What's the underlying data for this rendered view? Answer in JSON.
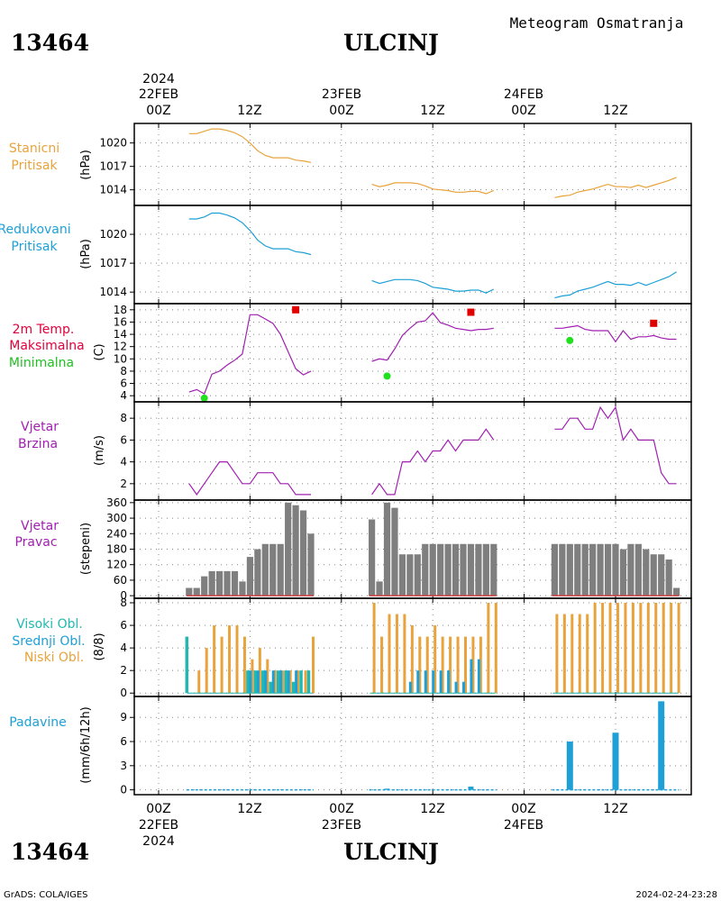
{
  "header": {
    "station_id": "13464",
    "station_name": "ULCINJ",
    "product": "Meteogram Osmatranja"
  },
  "footer": {
    "station_id": "13464",
    "station_name": "ULCINJ",
    "credit": "GrADS: COLA/IGES",
    "timestamp": "2024-02-24-23:28"
  },
  "time_axis": {
    "year": "2024",
    "ticks": [
      {
        "hour": 0,
        "label": "00Z",
        "date": "22FEB"
      },
      {
        "hour": 12,
        "label": "12Z"
      },
      {
        "hour": 24,
        "label": "00Z",
        "date": "23FEB"
      },
      {
        "hour": 36,
        "label": "12Z"
      },
      {
        "hour": 48,
        "label": "00Z",
        "date": "24FEB"
      },
      {
        "hour": 60,
        "label": "12Z"
      }
    ]
  },
  "panels": [
    {
      "label": [
        "Stanicni",
        "Pritisak"
      ],
      "units": "(hPa)",
      "label_color": "#e8a33c"
    },
    {
      "label": [
        "Redukovani",
        "Pritisak"
      ],
      "units": "(hPa)",
      "label_color": "#1ea0d6"
    },
    {
      "label": [
        "2m Temp.",
        "Maksimalna",
        "Minimalna"
      ],
      "units": "(C)",
      "label_colors": [
        "#e0003c",
        "#e0003c",
        "#20c020"
      ]
    },
    {
      "label": [
        "Vjetar",
        "Brzina"
      ],
      "units": "(m/s)",
      "label_color": "#a020b0"
    },
    {
      "label": [
        "Vjetar",
        "Pravac"
      ],
      "units": "(stepeni)",
      "label_color": "#a020b0"
    },
    {
      "label": [
        "Visoki Obl.",
        "Srednji Obl.",
        "Niski Obl."
      ],
      "units": "(8/8)",
      "label_colors": [
        "#20b8b0",
        "#1ea0d6",
        "#e8a33c"
      ]
    },
    {
      "label": [
        "Padavine"
      ],
      "units": "(mm/6h/12h)",
      "label_color": "#1ea0d6"
    }
  ],
  "chart_data": [
    {
      "type": "line",
      "title": "Stanicni Pritisak",
      "ylabel": "(hPa)",
      "ylim": [
        1012,
        1022.5
      ],
      "yticks": [
        1014,
        1017,
        1020
      ],
      "color": "#e8a33c",
      "series": [
        {
          "x": [
            4,
            5,
            6,
            7,
            8,
            9,
            10,
            11,
            12,
            13,
            14,
            15,
            16,
            17,
            18,
            19,
            20
          ],
          "y": [
            1021.2,
            1021.2,
            1021.5,
            1021.8,
            1021.8,
            1021.6,
            1021.3,
            1020.8,
            1020.0,
            1019.0,
            1018.4,
            1018.1,
            1018.1,
            1018.1,
            1017.8,
            1017.7,
            1017.5
          ]
        },
        {
          "x": [
            28,
            29,
            30,
            31,
            32,
            33,
            34,
            35,
            36,
            37,
            38,
            39,
            40,
            41,
            42,
            43,
            44
          ],
          "y": [
            1014.7,
            1014.4,
            1014.6,
            1014.9,
            1014.9,
            1014.9,
            1014.8,
            1014.5,
            1014.1,
            1014.0,
            1013.9,
            1013.7,
            1013.7,
            1013.8,
            1013.8,
            1013.5,
            1013.9
          ]
        },
        {
          "x": [
            52,
            53,
            54,
            55,
            56,
            57,
            58,
            59,
            60,
            61,
            62,
            63,
            64,
            65,
            66,
            67,
            68
          ],
          "y": [
            1013.0,
            1013.2,
            1013.3,
            1013.7,
            1013.9,
            1014.1,
            1014.4,
            1014.7,
            1014.4,
            1014.4,
            1014.3,
            1014.6,
            1014.3,
            1014.6,
            1014.9,
            1015.2,
            1015.6
          ]
        }
      ]
    },
    {
      "type": "line",
      "title": "Redukovani Pritisak",
      "ylabel": "(hPa)",
      "ylim": [
        1012.8,
        1023
      ],
      "yticks": [
        1014,
        1017,
        1020
      ],
      "color": "#1ea0d6",
      "series": [
        {
          "x": [
            4,
            5,
            6,
            7,
            8,
            9,
            10,
            11,
            12,
            13,
            14,
            15,
            16,
            17,
            18,
            19,
            20
          ],
          "y": [
            1021.6,
            1021.6,
            1021.8,
            1022.2,
            1022.2,
            1022.0,
            1021.7,
            1021.2,
            1020.4,
            1019.4,
            1018.8,
            1018.5,
            1018.5,
            1018.5,
            1018.2,
            1018.1,
            1017.9
          ]
        },
        {
          "x": [
            28,
            29,
            30,
            31,
            32,
            33,
            34,
            35,
            36,
            37,
            38,
            39,
            40,
            41,
            42,
            43,
            44
          ],
          "y": [
            1015.2,
            1014.9,
            1015.1,
            1015.3,
            1015.3,
            1015.3,
            1015.2,
            1014.9,
            1014.5,
            1014.4,
            1014.3,
            1014.1,
            1014.1,
            1014.2,
            1014.2,
            1013.9,
            1014.3
          ]
        },
        {
          "x": [
            52,
            53,
            54,
            55,
            56,
            57,
            58,
            59,
            60,
            61,
            62,
            63,
            64,
            65,
            66,
            67,
            68
          ],
          "y": [
            1013.4,
            1013.6,
            1013.7,
            1014.1,
            1014.3,
            1014.5,
            1014.8,
            1015.1,
            1014.8,
            1014.8,
            1014.7,
            1015.0,
            1014.7,
            1015.0,
            1015.3,
            1015.6,
            1016.1
          ]
        }
      ]
    },
    {
      "type": "line",
      "title": "2m Temp.",
      "ylabel": "(C)",
      "ylim": [
        3,
        19
      ],
      "yticks": [
        4,
        6,
        8,
        10,
        12,
        14,
        16,
        18
      ],
      "color": "#a020b0",
      "series": [
        {
          "x": [
            4,
            5,
            6,
            7,
            8,
            9,
            10,
            11,
            12,
            13,
            14,
            15,
            16,
            17,
            18,
            19,
            20
          ],
          "y": [
            4.6,
            5.0,
            4.3,
            7.5,
            8.0,
            9.0,
            9.8,
            10.8,
            17.2,
            17.2,
            16.5,
            15.8,
            14.0,
            11.2,
            8.4,
            7.4,
            8.0
          ]
        },
        {
          "x": [
            28,
            29,
            30,
            31,
            32,
            33,
            34,
            35,
            36,
            37,
            38,
            39,
            40,
            41,
            42,
            43,
            44
          ],
          "y": [
            9.6,
            10.0,
            9.8,
            11.6,
            13.8,
            15.0,
            16.0,
            16.2,
            17.5,
            15.9,
            15.5,
            15.0,
            14.8,
            14.6,
            14.8,
            14.8,
            15.0
          ]
        },
        {
          "x": [
            52,
            53,
            54,
            55,
            56,
            57,
            58,
            59,
            60,
            61,
            62,
            63,
            64,
            65,
            66,
            67,
            68
          ],
          "y": [
            15.0,
            15.0,
            15.2,
            15.4,
            14.8,
            14.6,
            14.6,
            14.6,
            12.8,
            14.6,
            13.2,
            13.6,
            13.6,
            13.8,
            13.4,
            13.2,
            13.2
          ]
        }
      ],
      "max": {
        "color": "#e00000",
        "points": [
          {
            "x": 18,
            "y": 18.0
          },
          {
            "x": 41,
            "y": 17.6
          },
          {
            "x": 65,
            "y": 15.8
          }
        ]
      },
      "min": {
        "color": "#20e020",
        "points": [
          {
            "x": 6,
            "y": 3.6
          },
          {
            "x": 30,
            "y": 7.2
          },
          {
            "x": 54,
            "y": 13.0
          }
        ]
      }
    },
    {
      "type": "line",
      "title": "Vjetar Brzina",
      "ylabel": "(m/s)",
      "ylim": [
        0.5,
        9.5
      ],
      "yticks": [
        2,
        4,
        6,
        8
      ],
      "color": "#a020b0",
      "series": [
        {
          "x": [
            4,
            5,
            6,
            7,
            8,
            9,
            10,
            11,
            12,
            13,
            14,
            15,
            16,
            17,
            18,
            19,
            20
          ],
          "y": [
            2,
            1,
            2,
            3,
            4,
            4,
            3,
            2,
            2,
            3,
            3,
            3,
            2,
            2,
            1,
            1,
            1
          ]
        },
        {
          "x": [
            28,
            29,
            30,
            31,
            32,
            33,
            34,
            35,
            36,
            37,
            38,
            39,
            40,
            41,
            42,
            43,
            44
          ],
          "y": [
            1,
            2,
            1,
            1,
            4,
            4,
            5,
            4,
            5,
            5,
            6,
            5,
            6,
            6,
            6,
            7,
            6
          ]
        },
        {
          "x": [
            52,
            53,
            54,
            55,
            56,
            57,
            58,
            59,
            60,
            61,
            62,
            63,
            64,
            65,
            66,
            67,
            68
          ],
          "y": [
            7,
            7,
            8,
            8,
            7,
            7,
            9,
            8,
            9,
            6,
            7,
            6,
            6,
            6,
            3,
            2,
            2
          ]
        }
      ]
    },
    {
      "type": "bar",
      "title": "Vjetar Pravac",
      "ylabel": "(stepeni)",
      "ylim": [
        -10,
        370
      ],
      "yticks": [
        0,
        60,
        120,
        180,
        240,
        300,
        360
      ],
      "color": "#7f7f7f",
      "x": [
        4,
        5,
        6,
        7,
        8,
        9,
        10,
        11,
        12,
        13,
        14,
        15,
        16,
        17,
        18,
        19,
        20,
        28,
        29,
        30,
        31,
        32,
        33,
        34,
        35,
        36,
        37,
        38,
        39,
        40,
        41,
        42,
        43,
        44,
        52,
        53,
        54,
        55,
        56,
        57,
        58,
        59,
        60,
        61,
        62,
        63,
        64,
        65,
        66,
        67,
        68
      ],
      "values": [
        30,
        30,
        75,
        95,
        95,
        95,
        95,
        55,
        150,
        180,
        200,
        200,
        200,
        360,
        350,
        330,
        240,
        295,
        55,
        360,
        340,
        160,
        160,
        160,
        200,
        200,
        200,
        200,
        200,
        200,
        200,
        200,
        200,
        200,
        200,
        200,
        200,
        200,
        200,
        200,
        200,
        200,
        200,
        180,
        200,
        200,
        180,
        160,
        160,
        140,
        30
      ]
    },
    {
      "type": "bar",
      "title": "Oblacnost",
      "ylabel": "(8/8)",
      "ylim": [
        -0.3,
        8.4
      ],
      "yticks": [
        0,
        2,
        4,
        6,
        8
      ],
      "series": [
        {
          "name": "Visoki Obl.",
          "color": "#20b8b0",
          "x": [
            4,
            12,
            13,
            14,
            15,
            16,
            17,
            18,
            19,
            20
          ],
          "values": [
            5,
            2,
            2,
            2,
            1,
            2,
            2,
            1,
            2,
            2
          ]
        },
        {
          "name": "Srednji Obl.",
          "color": "#1ea0d6",
          "x": [
            12,
            13,
            14,
            15,
            16,
            17,
            18,
            33,
            34,
            35,
            36,
            37,
            38,
            39,
            40,
            41,
            42
          ],
          "values": [
            2,
            2,
            2,
            2,
            2,
            2,
            2,
            1,
            2,
            2,
            2,
            2,
            2,
            1,
            1,
            3,
            3
          ]
        },
        {
          "name": "Niski Obl.",
          "color": "#e8a33c",
          "x": [
            5,
            6,
            7,
            8,
            9,
            10,
            11,
            12,
            13,
            14,
            15,
            16,
            17,
            18,
            19,
            20,
            28,
            29,
            30,
            31,
            32,
            33,
            34,
            35,
            36,
            37,
            38,
            39,
            40,
            41,
            42,
            43,
            44,
            52,
            53,
            54,
            55,
            56,
            57,
            58,
            59,
            60,
            61,
            62,
            63,
            64,
            65,
            66,
            67,
            68
          ],
          "values": [
            2,
            4,
            6,
            5,
            6,
            6,
            5,
            3,
            4,
            3,
            2,
            2,
            2,
            2,
            2,
            5,
            8,
            5,
            7,
            7,
            7,
            6,
            5,
            5,
            6,
            5,
            5,
            5,
            5,
            5,
            5,
            8,
            8,
            7,
            7,
            7,
            7,
            7,
            8,
            8,
            8,
            8,
            8,
            8,
            8,
            8,
            8,
            8,
            8,
            8
          ]
        }
      ]
    },
    {
      "type": "bar",
      "title": "Padavine",
      "ylabel": "(mm/6h/12h)",
      "ylim": [
        -0.6,
        11.6
      ],
      "yticks": [
        0,
        3,
        6,
        9
      ],
      "color": "#1ea0d6",
      "x": [
        54,
        60,
        66
      ],
      "values": [
        6.0,
        7.1,
        11.0
      ],
      "trace_zero_segments": [
        [
          4,
          20
        ],
        [
          28,
          44
        ],
        [
          52,
          68
        ]
      ],
      "small": [
        {
          "x": 30,
          "value": 0.15
        },
        {
          "x": 41,
          "value": 0.4
        }
      ]
    }
  ]
}
